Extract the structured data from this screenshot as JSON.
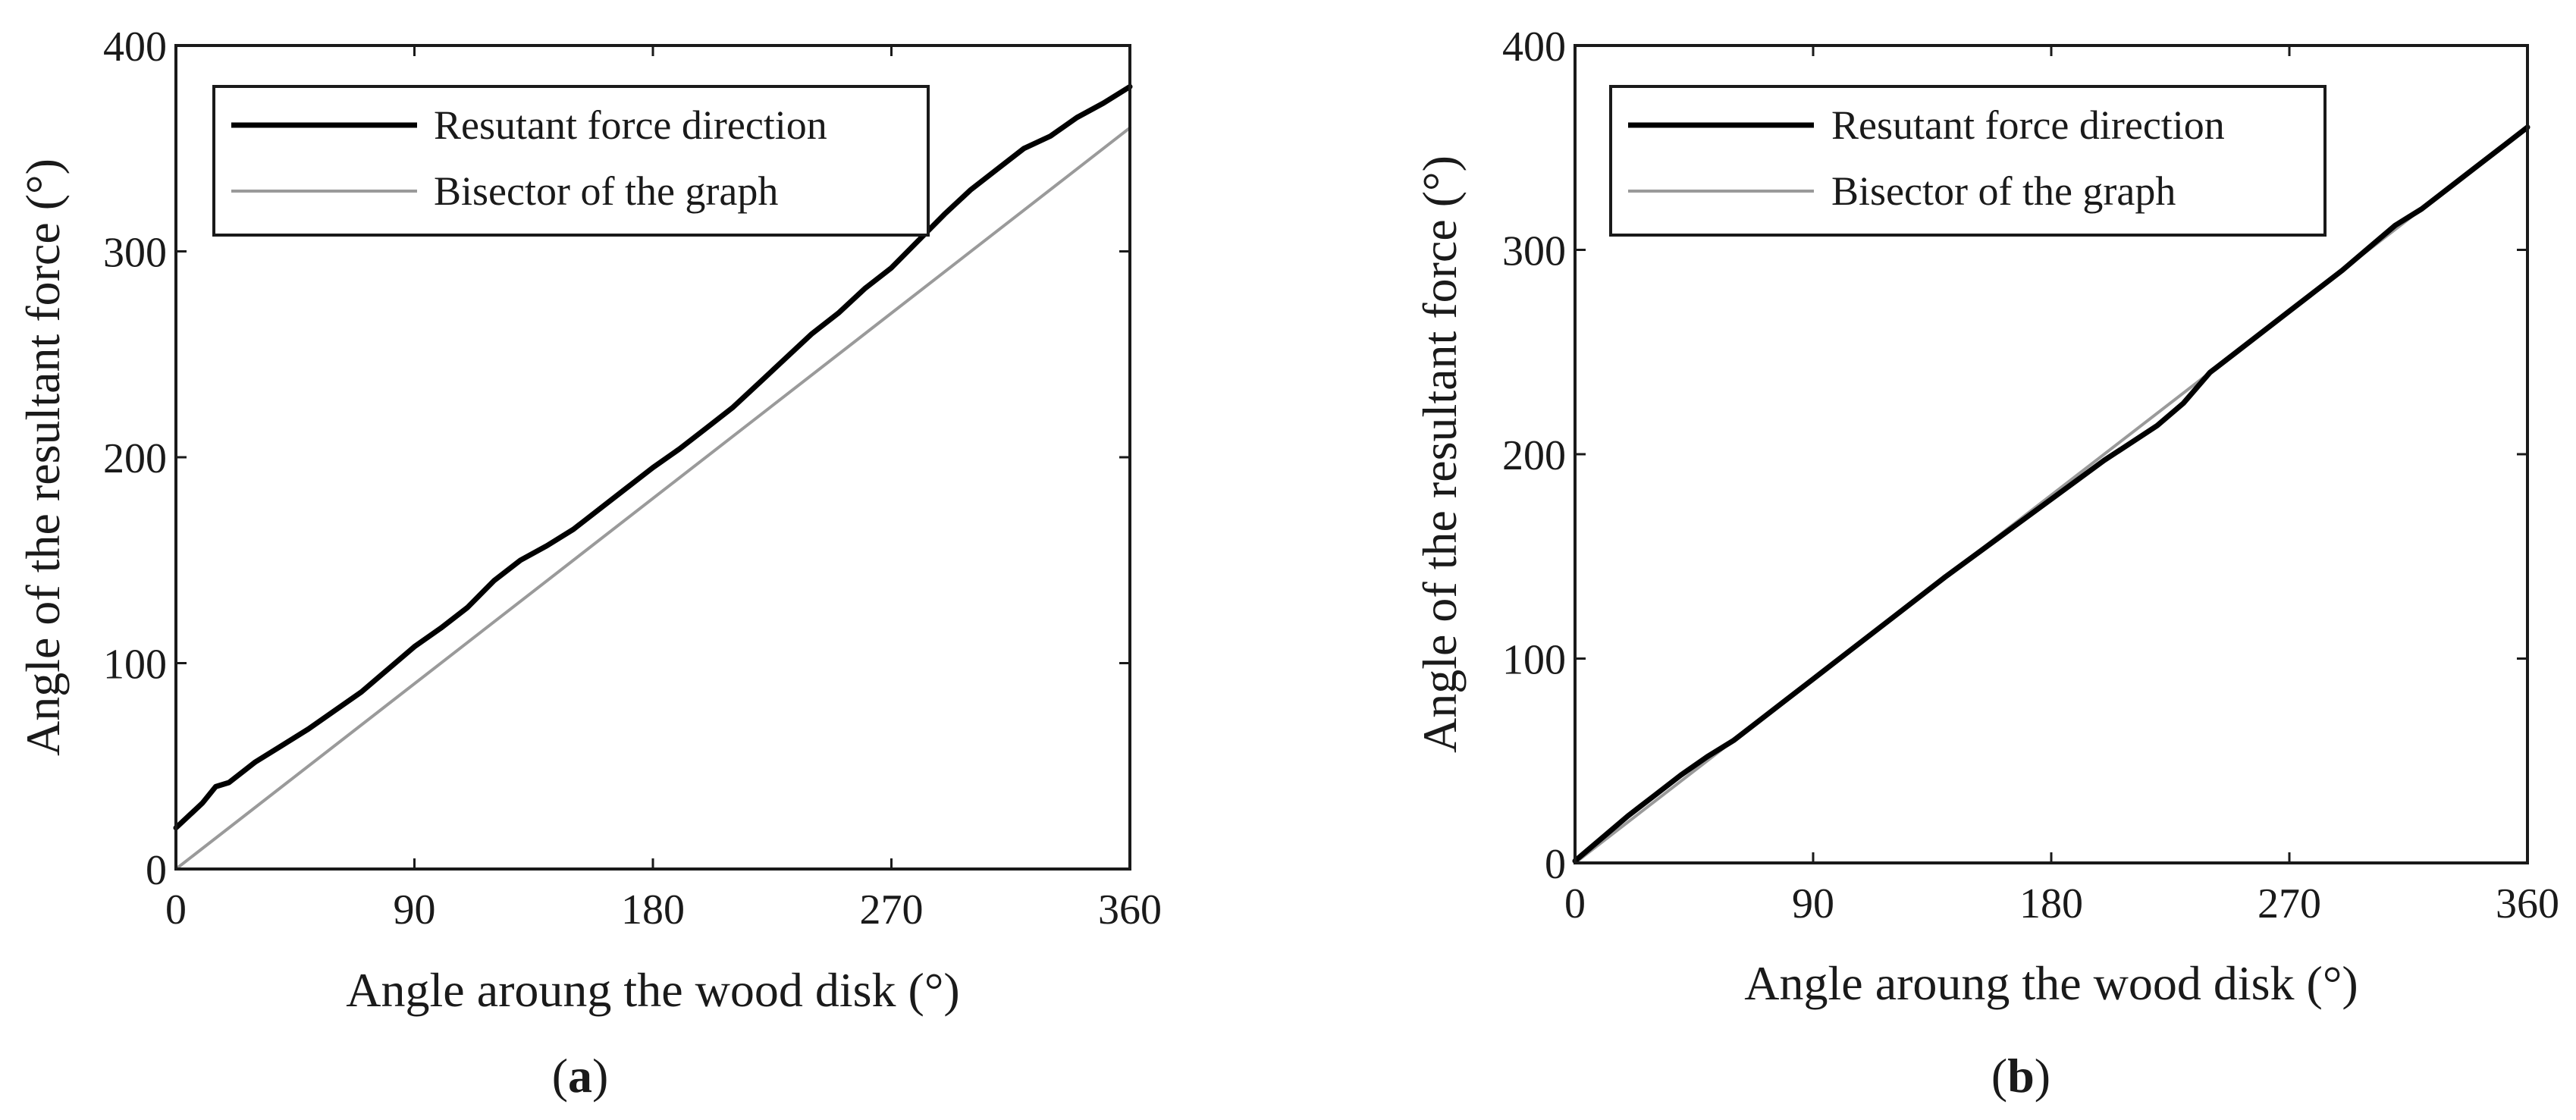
{
  "chart_data": [
    {
      "panel_label": "a",
      "type": "line",
      "xlabel": "Angle aroung the wood disk (°)",
      "ylabel": "Angle of the resultant force (°)",
      "xlim": [
        0,
        360
      ],
      "ylim": [
        0,
        400
      ],
      "xticks": [
        0,
        90,
        180,
        270,
        360
      ],
      "yticks": [
        0,
        100,
        200,
        300,
        400
      ],
      "grid": false,
      "legend_position": "top-left",
      "series": [
        {
          "name": "Resutant force direction",
          "color": "#000000",
          "x": [
            0,
            10,
            15,
            20,
            30,
            40,
            50,
            60,
            70,
            80,
            90,
            100,
            110,
            120,
            130,
            140,
            150,
            160,
            170,
            180,
            190,
            200,
            210,
            220,
            230,
            240,
            250,
            260,
            270,
            280,
            290,
            300,
            310,
            320,
            330,
            340,
            350,
            360
          ],
          "y": [
            20,
            32,
            40,
            42,
            52,
            60,
            68,
            77,
            86,
            97,
            108,
            117,
            127,
            140,
            150,
            157,
            165,
            175,
            185,
            195,
            204,
            214,
            224,
            236,
            248,
            260,
            270,
            282,
            292,
            305,
            318,
            330,
            340,
            350,
            356,
            365,
            372,
            380
          ]
        },
        {
          "name": "Bisector of the graph",
          "color": "#9a9a9a",
          "x": [
            0,
            360
          ],
          "y": [
            0,
            360
          ]
        }
      ]
    },
    {
      "panel_label": "b",
      "type": "line",
      "xlabel": "Angle aroung the wood disk (°)",
      "ylabel": "Angle of the resultant force (°)",
      "xlim": [
        0,
        360
      ],
      "ylim": [
        0,
        400
      ],
      "xticks": [
        0,
        90,
        180,
        270,
        360
      ],
      "yticks": [
        0,
        100,
        200,
        300,
        400
      ],
      "grid": false,
      "legend_position": "top-left",
      "series": [
        {
          "name": "Resutant force direction",
          "color": "#000000",
          "x": [
            0,
            10,
            20,
            30,
            40,
            50,
            60,
            70,
            80,
            90,
            100,
            120,
            140,
            160,
            180,
            200,
            220,
            230,
            240,
            250,
            260,
            270,
            280,
            290,
            300,
            310,
            320,
            330,
            340,
            350,
            360
          ],
          "y": [
            1,
            12,
            23,
            33,
            43,
            52,
            60,
            70,
            80,
            90,
            100,
            120,
            140,
            159,
            178,
            197,
            214,
            225,
            240,
            250,
            260,
            270,
            280,
            290,
            301,
            312,
            320,
            330,
            340,
            350,
            360
          ]
        },
        {
          "name": "Bisector of the graph",
          "color": "#9a9a9a",
          "x": [
            0,
            360
          ],
          "y": [
            0,
            360
          ]
        }
      ]
    }
  ]
}
